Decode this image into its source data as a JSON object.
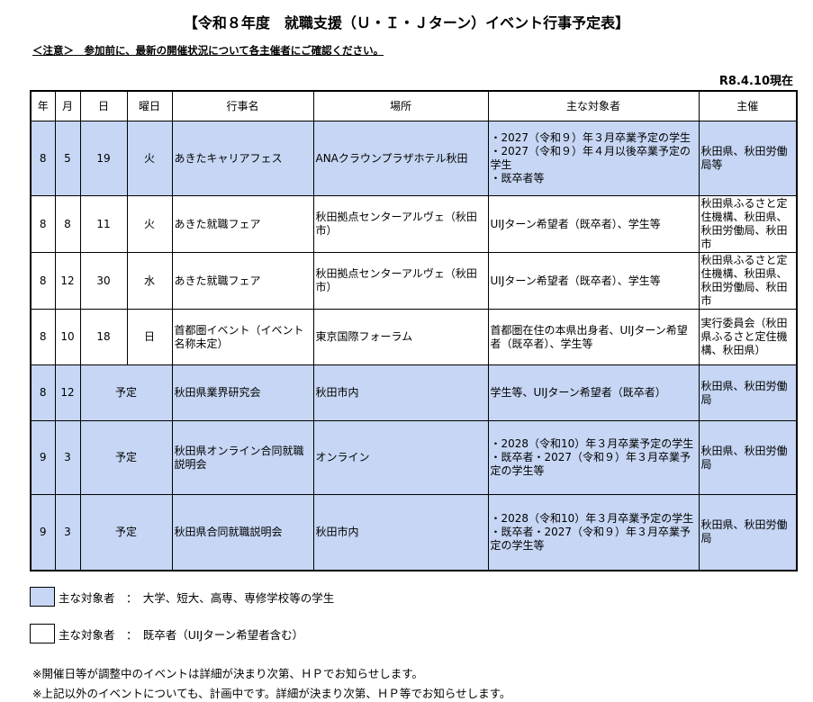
{
  "title": "【令和８年度　就職支援（Ｕ・Ｉ・Ｊターン）イベント行事予定表】",
  "notice": "＜注意＞　参加前に、最新の開催状況について各主催者にご確認ください。",
  "as_of": "R8.4.10現在",
  "colors": {
    "student_rows": "#c6d6f4"
  },
  "headers": [
    "年",
    "月",
    "日",
    "曜日",
    "行事名",
    "場所",
    "主な対象者",
    "主催"
  ],
  "rows": [
    {
      "blue": true,
      "year": "8",
      "month": "5",
      "day": "19",
      "weekday": "火",
      "name": "あきたキャリアフェス",
      "place": "ANAクラウンプラザホテル秋田",
      "target": "・2027（令和９）年３月卒業予定の学生\n・2027（令和９）年４月以後卒業予定の学生\n・既卒者等",
      "host": "秋田県、秋田労働局等"
    },
    {
      "blue": false,
      "year": "8",
      "month": "8",
      "day": "11",
      "weekday": "火",
      "name": " あきた就職フェア",
      "place": "秋田拠点センターアルヴェ（秋田市）",
      "target": "UIJターン希望者（既卒者）、学生等",
      "host": "秋田県ふるさと定住機構、秋田県、秋田労働局、秋田市"
    },
    {
      "blue": false,
      "year": "8",
      "month": "12",
      "day": "30",
      "weekday": "水",
      "name": "あきた就職フェア",
      "place": "秋田拠点センターアルヴェ（秋田市）",
      "target": "UIJターン希望者（既卒者）、学生等",
      "host": "秋田県ふるさと定住機構、秋田県、秋田労働局、秋田市"
    },
    {
      "blue": false,
      "year": "8",
      "month": "10",
      "day": "18",
      "weekday": "日",
      "name": "首都圏イベント（イベント名称未定）",
      "place": "東京国際フォーラム",
      "target": "首都圏在住の本県出身者、UIJターン希望者（既卒者）、学生等",
      "host": "実行委員会（秋田県ふるさと定住機構、秋田県）"
    },
    {
      "blue": true,
      "year": "8",
      "month": "12",
      "date_text": "予定",
      "name": "秋田県業界研究会",
      "place": "秋田市内",
      "target": "学生等、UIJターン希望者（既卒者）",
      "host": "秋田県、秋田労働局"
    },
    {
      "blue": true,
      "year": "9",
      "month": "3",
      "date_text": "予定",
      "name": "秋田県オンライン合同就職説明会",
      "place": "オンライン",
      "target": "・2028（令和10）年３月卒業予定の学生\n・既卒者・2027（令和９）年３月卒業予定の学生等",
      "host": "秋田県、秋田労働局"
    },
    {
      "blue": true,
      "year": "9",
      "month": "3",
      "date_text": "予定",
      "name": "秋田県合同就職説明会",
      "place": "秋田市内",
      "target": "・2028（令和10）年３月卒業予定の学生\n・既卒者・2027（令和９）年３月卒業予定の学生等",
      "host": "秋田県、秋田労働局"
    }
  ],
  "legend": [
    {
      "label": "主な対象者　：　大学、短大、高専、専修学校等の学生"
    },
    {
      "label": "主な対象者　：　既卒者（UIJターン希望者含む）"
    }
  ],
  "notes": [
    "※開催日等が調整中のイベントは詳細が決まり次第、ＨＰでお知らせします。",
    "※上記以外のイベントについても、計画中です。詳細が決まり次第、ＨＰ等でお知らせします。"
  ]
}
